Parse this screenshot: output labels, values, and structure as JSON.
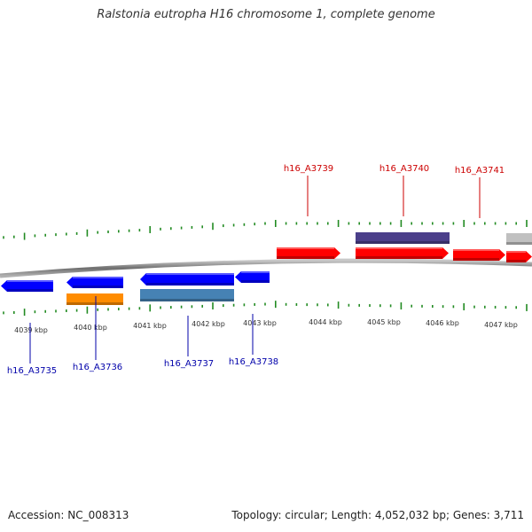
{
  "title": "Ralstonia eutropha H16 chromosome 1, complete genome",
  "footer": {
    "accession": "Accession: NC_008313",
    "summary": "Topology: circular; Length: 4,052,032 bp; Genes: 3,711"
  },
  "colors": {
    "forward_gene": "#ff0000",
    "reverse_gene": "#0000ff",
    "forward_label": "#cc0000",
    "reverse_label": "#0000aa",
    "tick": "#228b22",
    "backbone": "#8a8a8a"
  },
  "kbp_labels": [
    "4039 kbp",
    "4040 kbp",
    "4041 kbp",
    "4042 kbp",
    "4043 kbp",
    "4044 kbp",
    "4045 kbp",
    "4046 kbp",
    "4047 kbp"
  ],
  "genes": [
    {
      "id": "h16_A3735",
      "labeled": true
    },
    {
      "id": "h16_A3736",
      "labeled": true
    },
    {
      "id": "h16_A3737",
      "labeled": true
    },
    {
      "id": "h16_A3738",
      "labeled": true
    },
    {
      "id": "h16_A3739",
      "labeled": true
    },
    {
      "id": "h16_A3740",
      "labeled": true
    },
    {
      "id": "h16_A3741",
      "labeled": true
    }
  ]
}
